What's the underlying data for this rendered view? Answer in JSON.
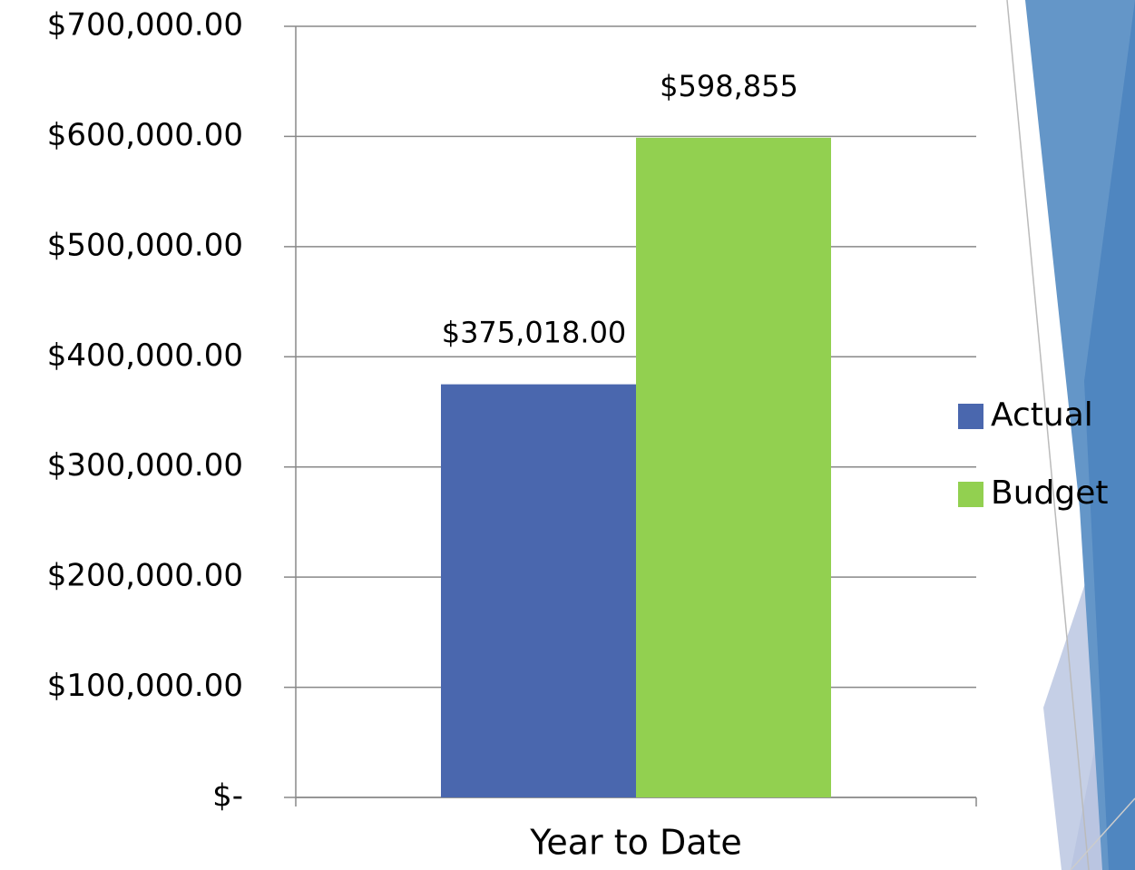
{
  "chart_data": {
    "type": "bar",
    "categories": [
      "Year to Date"
    ],
    "series": [
      {
        "name": "Actual",
        "color": "#4a67ae",
        "values": [
          375018
        ],
        "value_labels": [
          "$375,018.00"
        ]
      },
      {
        "name": "Budget",
        "color": "#92d050",
        "values": [
          598855
        ],
        "value_labels": [
          "$598,855"
        ]
      }
    ],
    "ylim": [
      0,
      700000
    ],
    "yticks": [
      {
        "value": 0,
        "label": "$-"
      },
      {
        "value": 100000,
        "label": "$100,000.00"
      },
      {
        "value": 200000,
        "label": "$200,000.00"
      },
      {
        "value": 300000,
        "label": "$300,000.00"
      },
      {
        "value": 400000,
        "label": "$400,000.00"
      },
      {
        "value": 500000,
        "label": "$500,000.00"
      },
      {
        "value": 600000,
        "label": "$600,000.00"
      },
      {
        "value": 700000,
        "label": "$700,000.00"
      }
    ],
    "grid": true,
    "legend": "right"
  }
}
